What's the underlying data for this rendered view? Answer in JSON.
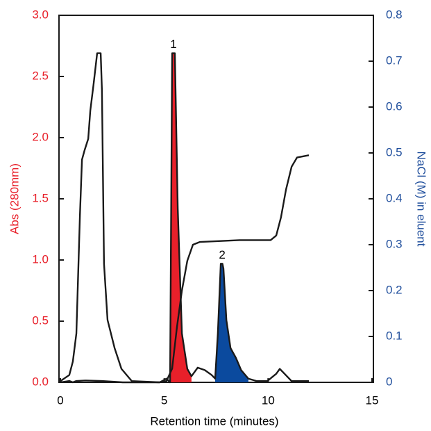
{
  "chart_data": {
    "type": "line",
    "xlabel": "Retention time (minutes)",
    "ylabel": "Abs (280mm)",
    "y2label": "NaCl (M) in eluent",
    "ylabel_color": "#e8202a",
    "y2label_color": "#1f4e9c",
    "xlim": [
      0,
      15
    ],
    "xticks": [
      0,
      5,
      10,
      15
    ],
    "ylim": [
      0,
      3
    ],
    "yticks": [
      {
        "value": 0,
        "label": "0.0"
      },
      0.5,
      {
        "value": 1,
        "label": "1.0"
      },
      1.5,
      {
        "value": 2,
        "label": "2.0"
      },
      2.5,
      {
        "value": 3,
        "label": "3.0"
      }
    ],
    "y2lim": [
      0,
      0.8
    ],
    "y2ticks": [
      0,
      0.1,
      0.2,
      0.3,
      0.4,
      0.5,
      0.6,
      0.7,
      0.8
    ],
    "series": [
      {
        "type": "area",
        "label": "1",
        "color": "#e8202a",
        "x": [
          5.28,
          5.38,
          5.51,
          5.65,
          5.85,
          6.11,
          6.31
        ],
        "values": [
          0,
          2.69,
          2.69,
          1.42,
          0.4,
          0.11,
          0.05
        ]
      },
      {
        "type": "area",
        "label": "2",
        "color": "#0b4a9e",
        "x": [
          7.45,
          7.58,
          7.72,
          7.8,
          7.85,
          7.99,
          8.19,
          8.45,
          8.7,
          9.05
        ],
        "values": [
          0.03,
          0.4,
          0.97,
          0.97,
          0.93,
          0.51,
          0.28,
          0.2,
          0.1,
          0.03
        ]
      },
      {
        "type": "line",
        "color": "#1a1a1a",
        "x": [
          0,
          0.43,
          0.6,
          0.77,
          0.94,
          1.04,
          1.17,
          1.34,
          1.44,
          1.6,
          1.77,
          1.94,
          2.0,
          2.1,
          2.27,
          2.61,
          2.94,
          3.44,
          4.78,
          5.11,
          5.28,
          5.38,
          5.51,
          5.65,
          5.85,
          6.11,
          6.31,
          6.61,
          6.95,
          7.28,
          7.45,
          7.58,
          7.72,
          7.8,
          7.85,
          7.99,
          8.19,
          8.45,
          8.7,
          9.05,
          9.46,
          9.96,
          10.39,
          10.56,
          10.79,
          11.13,
          11.96
        ],
        "values": [
          0.01,
          0.06,
          0.17,
          0.4,
          1.36,
          1.82,
          1.9,
          1.99,
          2.22,
          2.44,
          2.69,
          2.69,
          2.39,
          0.97,
          0.51,
          0.28,
          0.11,
          0.01,
          0,
          0.03,
          0,
          2.69,
          2.69,
          1.42,
          0.4,
          0.11,
          0.05,
          0.12,
          0.1,
          0.06,
          0.03,
          0.4,
          0.97,
          0.97,
          0.93,
          0.51,
          0.28,
          0.2,
          0.1,
          0.03,
          0.01,
          0.01,
          0.07,
          0.11,
          0.07,
          0.01,
          0.01
        ]
      },
      {
        "type": "line",
        "axis": "y2",
        "color": "#1a1a1a",
        "x": [
          0,
          0.43,
          0.6,
          0.77,
          1.2,
          2.0,
          3.0,
          4.78,
          5.11,
          5.38,
          5.61,
          5.85,
          6.11,
          6.38,
          6.72,
          8.62,
          10.12,
          10.39,
          10.62,
          10.86,
          11.13,
          11.39,
          11.96
        ],
        "values": [
          0,
          0.003,
          0,
          0.003,
          0.004,
          0.003,
          0,
          0,
          0.003,
          0.03,
          0.12,
          0.2,
          0.265,
          0.3,
          0.306,
          0.31,
          0.31,
          0.32,
          0.36,
          0.42,
          0.47,
          0.49,
          0.495
        ]
      }
    ]
  }
}
